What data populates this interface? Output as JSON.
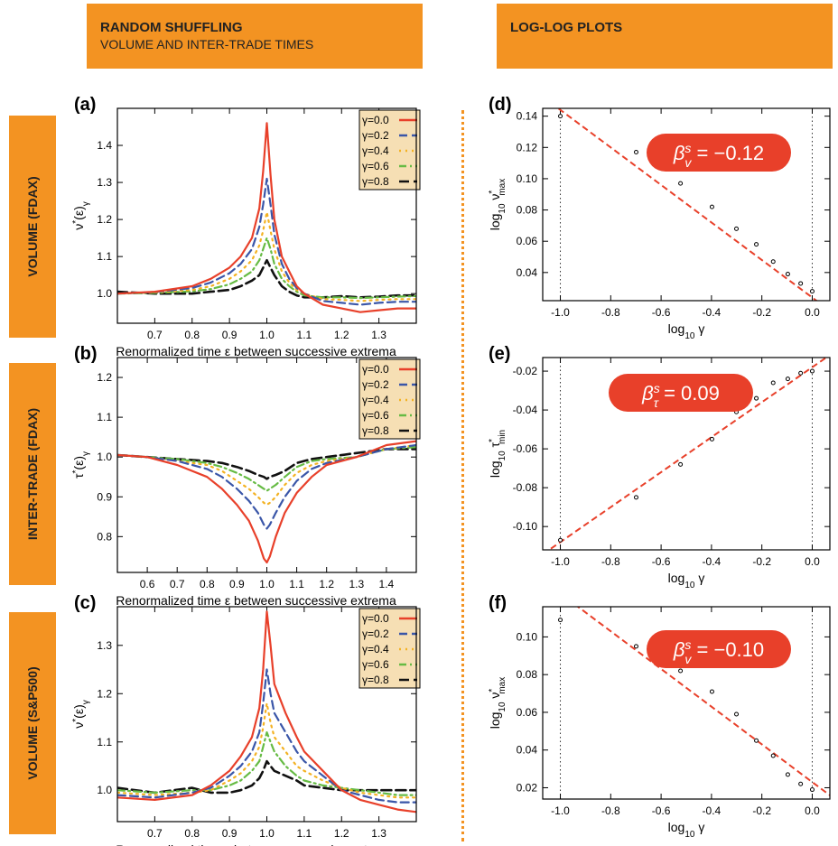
{
  "headers": {
    "left_title": "RANDOM SHUFFLING",
    "left_subtitle": "VOLUME AND INTER-TRADE TIMES",
    "right_title": "LOG-LOG PLOTS"
  },
  "side_labels": [
    "VOLUME (FDAX)",
    "INTER-TRADE (FDAX)",
    "VOLUME (S&P500)"
  ],
  "colors": {
    "header_bg": "#f39322",
    "fit_line": "#e8402a",
    "badge_bg": "#e8402a",
    "legend_bg": "#f6dfb4",
    "series": [
      "#e8402a",
      "#3a56a8",
      "#f3b223",
      "#66bb44",
      "#111111"
    ]
  },
  "chart_data": [
    {
      "id": "a",
      "panel_label": "(a)",
      "type": "line",
      "xlabel": "Renormalized time ε between successive extrema",
      "ylabel": "ν*(ε)γ",
      "xlim": [
        0.6,
        1.4
      ],
      "ylim": [
        0.92,
        1.5
      ],
      "xticks": [
        0.7,
        0.8,
        0.9,
        1.0,
        1.1,
        1.2,
        1.3
      ],
      "xtick_labels": [
        "0.7",
        "0.8",
        "0.9",
        "1.0",
        "1.1",
        "1.2",
        "1.3"
      ],
      "yticks": [
        1.0,
        1.1,
        1.2,
        1.3,
        1.4
      ],
      "ytick_labels": [
        "1.0",
        "1.1",
        "1.2",
        "1.3",
        "1.4"
      ],
      "legend": [
        "γ=0.0",
        "γ=0.2",
        "γ=0.4",
        "γ=0.6",
        "γ=0.8"
      ],
      "legend_position": "top-right",
      "grid": false,
      "x": [
        0.6,
        0.7,
        0.8,
        0.85,
        0.9,
        0.93,
        0.96,
        0.98,
        0.99,
        1.0,
        1.01,
        1.02,
        1.04,
        1.06,
        1.08,
        1.1,
        1.15,
        1.2,
        1.25,
        1.3,
        1.35,
        1.4
      ],
      "series": [
        {
          "name": "γ=0.0",
          "values": [
            1.0,
            1.005,
            1.02,
            1.04,
            1.07,
            1.1,
            1.15,
            1.23,
            1.33,
            1.46,
            1.32,
            1.2,
            1.1,
            1.06,
            1.02,
            1.0,
            0.97,
            0.96,
            0.95,
            0.955,
            0.96,
            0.96
          ]
        },
        {
          "name": "γ=0.2",
          "values": [
            1.0,
            1.004,
            1.015,
            1.03,
            1.055,
            1.08,
            1.12,
            1.18,
            1.24,
            1.31,
            1.24,
            1.16,
            1.08,
            1.04,
            1.015,
            1.0,
            0.98,
            0.975,
            0.97,
            0.975,
            0.978,
            0.978
          ]
        },
        {
          "name": "γ=0.4",
          "values": [
            1.0,
            1.003,
            1.01,
            1.02,
            1.04,
            1.06,
            1.09,
            1.13,
            1.17,
            1.22,
            1.17,
            1.12,
            1.06,
            1.03,
            1.01,
            1.0,
            0.985,
            0.983,
            0.98,
            0.983,
            0.985,
            0.985
          ]
        },
        {
          "name": "γ=0.6",
          "values": [
            1.0,
            1.002,
            1.006,
            1.012,
            1.025,
            1.04,
            1.06,
            1.09,
            1.12,
            1.15,
            1.12,
            1.08,
            1.04,
            1.02,
            1.005,
            0.995,
            0.99,
            0.99,
            0.988,
            0.99,
            0.992,
            0.993
          ]
        },
        {
          "name": "γ=0.8",
          "values": [
            1.005,
            1.0,
            1.0,
            1.005,
            1.01,
            1.02,
            1.035,
            1.05,
            1.07,
            1.09,
            1.07,
            1.05,
            1.02,
            1.005,
            0.995,
            0.99,
            0.99,
            0.993,
            0.99,
            0.992,
            0.995,
            0.995
          ]
        }
      ]
    },
    {
      "id": "b",
      "panel_label": "(b)",
      "type": "line",
      "xlabel": "Renormalized time ε between successive extrema",
      "ylabel": "τ*(ε)γ",
      "xlim": [
        0.5,
        1.5
      ],
      "ylim": [
        0.71,
        1.25
      ],
      "xticks": [
        0.6,
        0.7,
        0.8,
        0.9,
        1.0,
        1.1,
        1.2,
        1.3,
        1.4
      ],
      "xtick_labels": [
        "0.6",
        "0.7",
        "0.8",
        "0.9",
        "1.0",
        "1.1",
        "1.2",
        "1.3",
        "1.4"
      ],
      "yticks": [
        0.8,
        0.9,
        1.0,
        1.1,
        1.2
      ],
      "ytick_labels": [
        "0.8",
        "0.9",
        "1.0",
        "1.1",
        "1.2"
      ],
      "legend": [
        "γ=0.0",
        "γ=0.2",
        "γ=0.4",
        "γ=0.6",
        "γ=0.8"
      ],
      "legend_position": "top-right",
      "grid": false,
      "x": [
        0.5,
        0.6,
        0.7,
        0.8,
        0.85,
        0.9,
        0.94,
        0.97,
        0.99,
        1.0,
        1.01,
        1.03,
        1.06,
        1.1,
        1.15,
        1.2,
        1.3,
        1.4,
        1.5
      ],
      "series": [
        {
          "name": "γ=0.0",
          "values": [
            1.005,
            1.0,
            0.98,
            0.95,
            0.92,
            0.88,
            0.84,
            0.79,
            0.745,
            0.735,
            0.75,
            0.8,
            0.86,
            0.91,
            0.95,
            0.98,
            1.0,
            1.03,
            1.04
          ]
        },
        {
          "name": "γ=0.2",
          "values": [
            1.005,
            1.0,
            0.99,
            0.97,
            0.95,
            0.92,
            0.89,
            0.86,
            0.83,
            0.82,
            0.83,
            0.86,
            0.9,
            0.94,
            0.97,
            0.985,
            1.0,
            1.02,
            1.03
          ]
        },
        {
          "name": "γ=0.4",
          "values": [
            1.005,
            1.0,
            0.99,
            0.98,
            0.965,
            0.94,
            0.92,
            0.9,
            0.885,
            0.88,
            0.885,
            0.9,
            0.93,
            0.96,
            0.98,
            0.99,
            1.0,
            1.02,
            1.03
          ]
        },
        {
          "name": "γ=0.6",
          "values": [
            1.005,
            1.0,
            0.995,
            0.985,
            0.975,
            0.96,
            0.945,
            0.93,
            0.92,
            0.915,
            0.92,
            0.93,
            0.95,
            0.975,
            0.99,
            0.995,
            1.0,
            1.02,
            1.025
          ]
        },
        {
          "name": "γ=0.8",
          "values": [
            1.005,
            1.0,
            0.995,
            0.99,
            0.985,
            0.975,
            0.965,
            0.955,
            0.95,
            0.945,
            0.95,
            0.955,
            0.965,
            0.985,
            0.995,
            1.0,
            1.01,
            1.02,
            1.02
          ]
        }
      ]
    },
    {
      "id": "c",
      "panel_label": "(c)",
      "type": "line",
      "xlabel": "Renormalized time ε between successive extrema",
      "ylabel": "ν*(ε)γ",
      "xlim": [
        0.6,
        1.4
      ],
      "ylim": [
        0.935,
        1.38
      ],
      "xticks": [
        0.7,
        0.8,
        0.9,
        1.0,
        1.1,
        1.2,
        1.3
      ],
      "xtick_labels": [
        "0.7",
        "0.8",
        "0.9",
        "1.0",
        "1.1",
        "1.2",
        "1.3"
      ],
      "yticks": [
        1.0,
        1.1,
        1.2,
        1.3
      ],
      "ytick_labels": [
        "1.0",
        "1.1",
        "1.2",
        "1.3"
      ],
      "legend": [
        "γ=0.0",
        "γ=0.2",
        "γ=0.4",
        "γ=0.6",
        "γ=0.8"
      ],
      "legend_position": "top-right",
      "grid": false,
      "x": [
        0.6,
        0.7,
        0.8,
        0.85,
        0.9,
        0.93,
        0.96,
        0.98,
        0.99,
        1.0,
        1.01,
        1.02,
        1.05,
        1.08,
        1.1,
        1.15,
        1.2,
        1.25,
        1.3,
        1.35,
        1.4
      ],
      "series": [
        {
          "name": "γ=0.0",
          "values": [
            0.985,
            0.98,
            0.99,
            1.01,
            1.04,
            1.07,
            1.11,
            1.17,
            1.25,
            1.37,
            1.3,
            1.22,
            1.16,
            1.11,
            1.08,
            1.04,
            1.0,
            0.98,
            0.97,
            0.96,
            0.955
          ]
        },
        {
          "name": "γ=0.2",
          "values": [
            0.99,
            0.985,
            0.995,
            1.005,
            1.03,
            1.05,
            1.08,
            1.12,
            1.18,
            1.25,
            1.2,
            1.16,
            1.12,
            1.08,
            1.06,
            1.03,
            1.0,
            0.99,
            0.98,
            0.975,
            0.975
          ]
        },
        {
          "name": "γ=0.4",
          "values": [
            0.995,
            0.99,
            0.995,
            1.0,
            1.02,
            1.035,
            1.06,
            1.09,
            1.13,
            1.18,
            1.14,
            1.11,
            1.08,
            1.05,
            1.04,
            1.02,
            1.005,
            0.995,
            0.99,
            0.985,
            0.985
          ]
        },
        {
          "name": "γ=0.6",
          "values": [
            1.0,
            0.995,
            1.0,
            1.0,
            1.01,
            1.02,
            1.04,
            1.06,
            1.09,
            1.12,
            1.1,
            1.08,
            1.05,
            1.03,
            1.02,
            1.01,
            1.005,
            1.0,
            0.995,
            0.99,
            0.99
          ]
        },
        {
          "name": "γ=0.8",
          "values": [
            1.005,
            0.995,
            1.005,
            0.995,
            0.995,
            1.0,
            1.01,
            1.025,
            1.04,
            1.06,
            1.05,
            1.04,
            1.03,
            1.02,
            1.01,
            1.005,
            1.0,
            1.0,
            1.0,
            1.0,
            1.0
          ]
        }
      ]
    },
    {
      "id": "d",
      "panel_label": "(d)",
      "type": "scatter",
      "xlabel": "log10 γ",
      "ylabel": "log10 ν*max",
      "xlim": [
        -1.07,
        0.07
      ],
      "ylim": [
        0.022,
        0.145
      ],
      "xticks": [
        -1.0,
        -0.8,
        -0.6,
        -0.4,
        -0.2,
        0.0
      ],
      "xtick_labels": [
        "-1.0",
        "-0.8",
        "-0.6",
        "-0.4",
        "-0.2",
        "0.0"
      ],
      "yticks": [
        0.04,
        0.06,
        0.08,
        0.1,
        0.12,
        0.14
      ],
      "ytick_labels": [
        "0.04",
        "0.06",
        "0.08",
        "0.10",
        "0.12",
        "0.14"
      ],
      "vlines": [
        -1.0,
        0.0
      ],
      "grid": false,
      "points": {
        "x": [
          -1.0,
          -0.699,
          -0.523,
          -0.398,
          -0.301,
          -0.222,
          -0.155,
          -0.097,
          -0.046,
          0.0
        ],
        "y": [
          0.14,
          0.117,
          0.097,
          0.082,
          0.068,
          0.058,
          0.047,
          0.039,
          0.033,
          0.028
        ]
      },
      "fit": {
        "slope": -0.12,
        "intercept": 0.024
      },
      "annotation": {
        "symbol": "β",
        "superscript": "s",
        "subscript": "v",
        "text": " = −0.12"
      }
    },
    {
      "id": "e",
      "panel_label": "(e)",
      "type": "scatter",
      "xlabel": "log10 γ",
      "ylabel": "log10 τ*min",
      "xlim": [
        -1.07,
        0.07
      ],
      "ylim": [
        -0.112,
        -0.013
      ],
      "xticks": [
        -1.0,
        -0.8,
        -0.6,
        -0.4,
        -0.2,
        0.0
      ],
      "xtick_labels": [
        "-1.0",
        "-0.8",
        "-0.6",
        "-0.4",
        "-0.2",
        "0.0"
      ],
      "yticks": [
        -0.1,
        -0.08,
        -0.06,
        -0.04,
        -0.02
      ],
      "ytick_labels": [
        "-0.10",
        "-0.08",
        "-0.06",
        "-0.04",
        "-0.02"
      ],
      "vlines": [
        -1.0,
        0.0
      ],
      "grid": false,
      "points": {
        "x": [
          -1.0,
          -0.699,
          -0.523,
          -0.398,
          -0.301,
          -0.222,
          -0.155,
          -0.097,
          -0.046,
          0.0
        ],
        "y": [
          -0.107,
          -0.085,
          -0.068,
          -0.055,
          -0.041,
          -0.034,
          -0.026,
          -0.024,
          -0.021,
          -0.02
        ]
      },
      "fit": {
        "slope": 0.09,
        "intercept": -0.018
      },
      "annotation": {
        "symbol": "β",
        "superscript": "s",
        "subscript": "τ",
        "text": " = 0.09"
      }
    },
    {
      "id": "f",
      "panel_label": "(f)",
      "type": "scatter",
      "xlabel": "log10 γ",
      "ylabel": "log10 ν*max",
      "xlim": [
        -1.07,
        0.07
      ],
      "ylim": [
        0.014,
        0.116
      ],
      "xticks": [
        -1.0,
        -0.8,
        -0.6,
        -0.4,
        -0.2,
        0.0
      ],
      "xtick_labels": [
        "-1.0",
        "-0.8",
        "-0.6",
        "-0.4",
        "-0.2",
        "0.0"
      ],
      "yticks": [
        0.02,
        0.04,
        0.06,
        0.08,
        0.1
      ],
      "ytick_labels": [
        "0.02",
        "0.04",
        "0.06",
        "0.08",
        "0.10"
      ],
      "vlines": [
        -1.0,
        0.0
      ],
      "grid": false,
      "points": {
        "x": [
          -1.0,
          -0.699,
          -0.523,
          -0.398,
          -0.301,
          -0.222,
          -0.155,
          -0.097,
          -0.046,
          0.0
        ],
        "y": [
          0.109,
          0.095,
          0.082,
          0.071,
          0.059,
          0.045,
          0.037,
          0.027,
          0.022,
          0.019
        ]
      },
      "fit": {
        "slope": -0.1,
        "intercept": 0.023
      },
      "annotation": {
        "symbol": "β",
        "superscript": "s",
        "subscript": "v",
        "text": " = −0.10"
      }
    }
  ]
}
